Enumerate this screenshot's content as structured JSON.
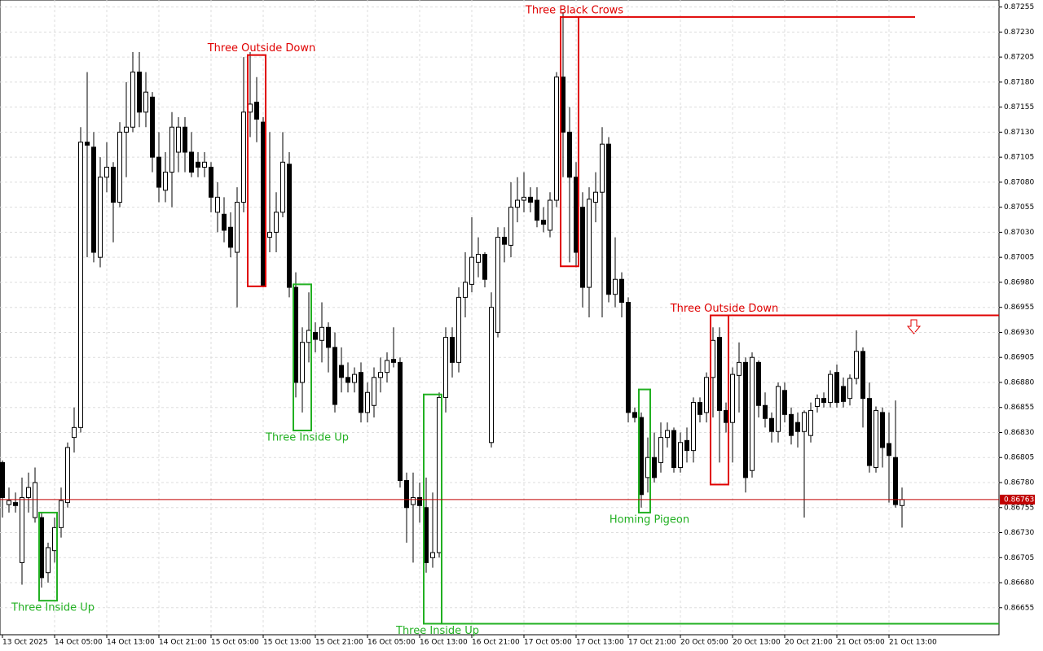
{
  "chart_data": {
    "type": "candlestick",
    "categories": [
      "13 Oct 2025",
      null,
      null,
      null,
      null,
      null,
      null,
      null,
      "14 Oct 05:00",
      null,
      null,
      null,
      null,
      null,
      null,
      null,
      "14 Oct 13:00",
      null,
      null,
      null,
      null,
      null,
      null,
      null,
      "14 Oct 21:00",
      null,
      null,
      null,
      null,
      null,
      null,
      null,
      "15 Oct 05:00",
      null,
      null,
      null,
      null,
      null,
      null,
      null,
      "15 Oct 13:00",
      null,
      null,
      null,
      null,
      null,
      null,
      null,
      "15 Oct 21:00",
      null,
      null,
      null,
      null,
      null,
      null,
      null,
      "16 Oct 05:00",
      null,
      null,
      null,
      null,
      null,
      null,
      null,
      "16 Oct 13:00",
      null,
      null,
      null,
      null,
      null,
      null,
      null,
      "16 Oct 21:00",
      null,
      null,
      null,
      null,
      null,
      null,
      null,
      "17 Oct 05:00",
      null,
      null,
      null,
      null,
      null,
      null,
      null,
      "17 Oct 13:00",
      null,
      null,
      null,
      null,
      null,
      null,
      null,
      "17 Oct 21:00",
      null,
      null,
      null,
      null,
      null,
      null,
      null,
      "20 Oct 05:00",
      null,
      null,
      null,
      null,
      null,
      null,
      null,
      "20 Oct 13:00",
      null,
      null,
      null,
      null,
      null,
      null,
      null,
      "20 Oct 21:00",
      null,
      null,
      null,
      null,
      null,
      null,
      null,
      "21 Oct 05:00",
      null,
      null,
      null,
      null,
      null,
      null,
      null,
      "21 Oct 13:00",
      null,
      null
    ],
    "open": [
      0.868,
      0.86758,
      0.8676,
      0.867,
      0.86765,
      0.86745,
      0.86745,
      0.8669,
      0.86712,
      0.86735,
      0.8676,
      0.86825,
      0.86835,
      0.8712,
      0.87115,
      0.87005,
      0.87085,
      0.87095,
      0.8706,
      0.8713,
      0.87135,
      0.8719,
      0.8715,
      0.87165,
      0.87105,
      0.87072,
      0.8709,
      0.8711,
      0.87135,
      0.8711,
      0.871,
      0.87095,
      0.87095,
      0.8705,
      0.87048,
      0.87035,
      0.8701,
      0.8706,
      0.8715,
      0.8716,
      0.8714,
      0.87025,
      0.8703,
      0.8705,
      0.87098,
      0.86975,
      0.8688,
      0.8692,
      0.8693,
      0.86922,
      0.86935,
      0.86915,
      0.86897,
      0.86885,
      0.8688,
      0.8689,
      0.8685,
      0.86857,
      0.86885,
      0.8689,
      0.86903,
      0.869,
      0.86782,
      0.86758,
      0.86765,
      0.86755,
      0.86705,
      0.8671,
      0.86865,
      0.86925,
      0.869,
      0.86965,
      0.86978,
      0.87,
      0.87008,
      0.8682,
      0.8693,
      0.87025,
      0.87017,
      0.87055,
      0.87062,
      0.87065,
      0.87062,
      0.87042,
      0.87032,
      0.87062,
      0.87185,
      0.8713,
      0.87085,
      0.87055,
      0.86975,
      0.8706,
      0.8707,
      0.87118,
      0.86968,
      0.86983,
      0.8696,
      0.8685,
      0.86845,
      0.86785,
      0.86805,
      0.868,
      0.86825,
      0.86832,
      0.86795,
      0.86822,
      0.86812,
      0.8686,
      0.8685,
      0.86885,
      0.86925,
      0.86852,
      0.8684,
      0.86887,
      0.869,
      0.86792,
      0.869,
      0.86857,
      0.86844,
      0.86831,
      0.86872,
      0.86848,
      0.8684,
      0.86831,
      0.86827,
      0.86856,
      0.86864,
      0.8686,
      0.8689,
      0.86876,
      0.86864,
      0.86884,
      0.86911,
      0.86864,
      0.86795,
      0.8685,
      0.86819,
      0.86805,
      0.86757
    ],
    "high": [
      0.86802,
      0.86775,
      0.8677,
      0.86785,
      0.8679,
      0.86795,
      0.8675,
      0.8672,
      0.86745,
      0.86775,
      0.8682,
      0.86855,
      0.87135,
      0.8719,
      0.8713,
      0.87105,
      0.8712,
      0.871,
      0.8714,
      0.8718,
      0.8721,
      0.8721,
      0.8719,
      0.8717,
      0.8713,
      0.8711,
      0.8715,
      0.87145,
      0.87145,
      0.8713,
      0.8711,
      0.8711,
      0.871,
      0.8708,
      0.87065,
      0.8705,
      0.87075,
      0.87205,
      0.8721,
      0.87185,
      0.87145,
      0.8713,
      0.8707,
      0.8713,
      0.8711,
      0.8699,
      0.86935,
      0.8697,
      0.8694,
      0.8696,
      0.8694,
      0.8693,
      0.86915,
      0.869,
      0.86895,
      0.869,
      0.8688,
      0.86895,
      0.86905,
      0.8691,
      0.86935,
      0.86905,
      0.8679,
      0.8679,
      0.8678,
      0.86785,
      0.8677,
      0.8687,
      0.86935,
      0.86935,
      0.86975,
      0.8701,
      0.87045,
      0.87025,
      0.8701,
      0.8697,
      0.87035,
      0.87035,
      0.8708,
      0.87085,
      0.8709,
      0.87075,
      0.87075,
      0.87055,
      0.8707,
      0.8719,
      0.8725,
      0.87155,
      0.871,
      0.8707,
      0.87075,
      0.8709,
      0.87135,
      0.87125,
      0.87025,
      0.8699,
      0.86965,
      0.86855,
      0.8685,
      0.86825,
      0.8683,
      0.8684,
      0.8684,
      0.86835,
      0.8683,
      0.86835,
      0.86865,
      0.86865,
      0.8689,
      0.86935,
      0.86935,
      0.8686,
      0.86895,
      0.8692,
      0.86905,
      0.8691,
      0.86902,
      0.8687,
      0.8685,
      0.8688,
      0.8688,
      0.86855,
      0.8685,
      0.86852,
      0.8686,
      0.86868,
      0.8687,
      0.86892,
      0.86898,
      0.86885,
      0.86888,
      0.86932,
      0.86915,
      0.8688,
      0.86856,
      0.86855,
      0.8685,
      0.86862,
      0.86775
    ],
    "low": [
      0.86745,
      0.8675,
      0.8675,
      0.86678,
      0.8675,
      0.8674,
      0.86675,
      0.8668,
      0.867,
      0.86725,
      0.86755,
      0.8681,
      0.8683,
      0.87005,
      0.87,
      0.86995,
      0.8707,
      0.8702,
      0.87055,
      0.87085,
      0.8713,
      0.87135,
      0.87135,
      0.8709,
      0.8706,
      0.8706,
      0.87055,
      0.8709,
      0.8709,
      0.87085,
      0.87085,
      0.87085,
      0.8705,
      0.8703,
      0.8702,
      0.87005,
      0.86955,
      0.8705,
      0.87125,
      0.8712,
      0.86975,
      0.8701,
      0.8701,
      0.87045,
      0.86965,
      0.86865,
      0.8685,
      0.869,
      0.8691,
      0.869,
      0.8689,
      0.8685,
      0.8687,
      0.8687,
      0.8687,
      0.8684,
      0.8684,
      0.86845,
      0.8687,
      0.8688,
      0.86895,
      0.86775,
      0.8672,
      0.867,
      0.8674,
      0.8669,
      0.86695,
      0.86705,
      0.8685,
      0.86885,
      0.8689,
      0.86945,
      0.8697,
      0.86985,
      0.86975,
      0.86815,
      0.86925,
      0.87,
      0.87005,
      0.8704,
      0.8705,
      0.8705,
      0.87035,
      0.8703,
      0.87025,
      0.87055,
      0.87085,
      0.87,
      0.86995,
      0.86955,
      0.86945,
      0.8704,
      0.86945,
      0.8696,
      0.86955,
      0.86945,
      0.8684,
      0.8684,
      0.86755,
      0.8677,
      0.8678,
      0.8679,
      0.86815,
      0.8679,
      0.8679,
      0.868,
      0.868,
      0.8684,
      0.8684,
      0.86845,
      0.868,
      0.8683,
      0.868,
      0.8685,
      0.8677,
      0.86785,
      0.86845,
      0.86835,
      0.8682,
      0.8682,
      0.8684,
      0.86818,
      0.86815,
      0.86745,
      0.8682,
      0.8685,
      0.86855,
      0.86855,
      0.86855,
      0.86855,
      0.86857,
      0.86878,
      0.86835,
      0.8679,
      0.8679,
      0.86795,
      0.8676,
      0.86755,
      0.86735
    ],
    "close": [
      0.86765,
      0.86762,
      0.86757,
      0.86765,
      0.86775,
      0.8678,
      0.86685,
      0.86715,
      0.86735,
      0.86762,
      0.86815,
      0.86835,
      0.8712,
      0.87117,
      0.8701,
      0.87085,
      0.87095,
      0.8706,
      0.8713,
      0.87135,
      0.8719,
      0.8715,
      0.8717,
      0.87105,
      0.87075,
      0.8709,
      0.87135,
      0.87135,
      0.8711,
      0.8709,
      0.87095,
      0.871,
      0.87065,
      0.87065,
      0.87032,
      0.87015,
      0.8706,
      0.8715,
      0.87158,
      0.87143,
      0.86977,
      0.8703,
      0.8705,
      0.871,
      0.86975,
      0.8688,
      0.8692,
      0.86932,
      0.86923,
      0.86935,
      0.86915,
      0.86858,
      0.86885,
      0.8688,
      0.86888,
      0.8685,
      0.8687,
      0.86885,
      0.8689,
      0.86902,
      0.869,
      0.86782,
      0.86755,
      0.86765,
      0.86757,
      0.867,
      0.8671,
      0.86865,
      0.86925,
      0.869,
      0.86965,
      0.8698,
      0.87005,
      0.87008,
      0.86983,
      0.86955,
      0.87025,
      0.87018,
      0.87055,
      0.87062,
      0.87065,
      0.8706,
      0.87042,
      0.87038,
      0.87062,
      0.87185,
      0.8713,
      0.87085,
      0.8701,
      0.86975,
      0.87063,
      0.8707,
      0.87118,
      0.86968,
      0.86983,
      0.8696,
      0.8685,
      0.86845,
      0.86768,
      0.86805,
      0.86785,
      0.86825,
      0.86832,
      0.86795,
      0.8682,
      0.86812,
      0.8686,
      0.86848,
      0.86885,
      0.86922,
      0.86852,
      0.8684,
      0.86888,
      0.869,
      0.86785,
      0.86905,
      0.86857,
      0.86844,
      0.86831,
      0.86876,
      0.86848,
      0.86827,
      0.86831,
      0.8685,
      0.86852,
      0.86864,
      0.8686,
      0.86888,
      0.8686,
      0.86861,
      0.86884,
      0.86911,
      0.86864,
      0.86797,
      0.86852,
      0.86815,
      0.86807,
      0.86758,
      0.86763
    ],
    "ylim": [
      0.86628,
      0.87262
    ],
    "yticks": [
      0.86655,
      {
        "value": 0.8668,
        "label": "0.86680"
      },
      0.86705,
      {
        "value": 0.8673,
        "label": "0.86730"
      },
      0.86755,
      {
        "value": 0.8678,
        "label": "0.86780"
      },
      0.86805,
      {
        "value": 0.8683,
        "label": "0.86830"
      },
      0.86855,
      {
        "value": 0.8688,
        "label": "0.86880"
      },
      0.86905,
      {
        "value": 0.8693,
        "label": "0.86930"
      },
      0.86955,
      {
        "value": 0.8698,
        "label": "0.86980"
      },
      0.87005,
      {
        "value": 0.8703,
        "label": "0.87030"
      },
      0.87055,
      {
        "value": 0.8708,
        "label": "0.87080"
      },
      0.87105,
      {
        "value": 0.8713,
        "label": "0.87130"
      },
      0.87155,
      {
        "value": 0.8718,
        "label": "0.87180"
      },
      0.87205,
      {
        "value": 0.8723,
        "label": "0.87230"
      },
      0.87255
    ],
    "grid": true,
    "last_price": 0.86763,
    "last_price_color": "#c00000",
    "patterns": [
      {
        "label": "Three Inside Up",
        "color": "#22b022",
        "first": 6,
        "last": 8,
        "high": 0.8675,
        "low": 0.86662,
        "label_pos": "below"
      },
      {
        "label": "Three Outside Down",
        "color": "#e00000",
        "first": 38,
        "last": 40,
        "high": 0.87207,
        "low": 0.86976,
        "label_pos": "above"
      },
      {
        "label": "Three Inside Up",
        "color": "#22b022",
        "first": 45,
        "last": 47,
        "high": 0.86978,
        "low": 0.86832,
        "label_pos": "below"
      },
      {
        "label": "Three Inside Up",
        "color": "#22b022",
        "first": 65,
        "last": 67,
        "high": 0.86868,
        "low": 0.86639,
        "label_pos": "below",
        "line_at": "low",
        "line_end": "edge"
      },
      {
        "label": "Three Black Crows",
        "color": "#e00000",
        "first": 86,
        "last": 88,
        "high": 0.87245,
        "low": 0.86996,
        "label_pos": "above",
        "line_at": "high",
        "line_end": 140
      },
      {
        "label": "Homing Pigeon",
        "color": "#22b022",
        "first": 98,
        "last": 99,
        "high": 0.86873,
        "low": 0.8675,
        "label_pos": "below"
      },
      {
        "label": "Three Outside Down",
        "color": "#e00000",
        "first": 109,
        "last": 111,
        "high": 0.86947,
        "low": 0.86778,
        "label_pos": "above",
        "line_at": "high",
        "line_end": "edge"
      }
    ]
  }
}
